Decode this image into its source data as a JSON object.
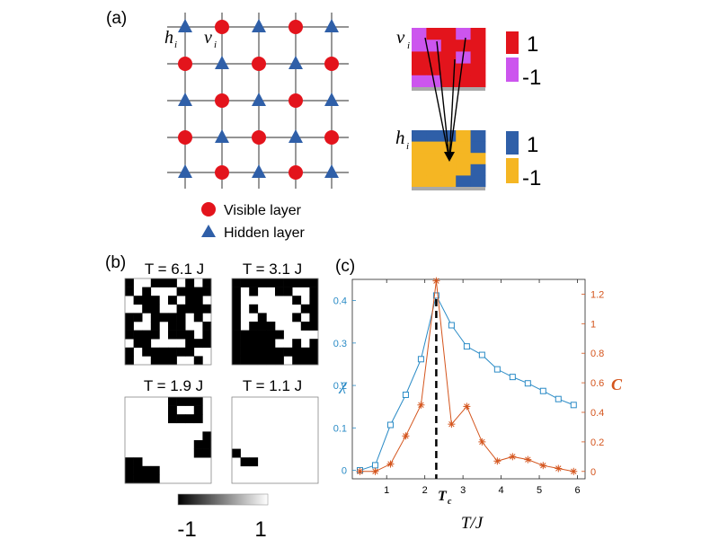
{
  "panel_a": {
    "label": "(a)",
    "hidden_label": {
      "base": "h",
      "sub": "i"
    },
    "visible_label": {
      "base": "v",
      "sub": "i"
    },
    "visible_colorbar": {
      "top": "1",
      "bottom": "-1",
      "colors": [
        "#e3141c",
        "#cc55ee"
      ]
    },
    "hidden_colorbar": {
      "top": "1",
      "bottom": "-1",
      "colors": [
        "#2f5fa8",
        "#f5b623"
      ]
    },
    "legend": [
      {
        "text": "Visible layer",
        "marker": "circle",
        "color": "#e3141c"
      },
      {
        "text": "Hidden layer",
        "marker": "triangle",
        "color": "#2f5fa8"
      }
    ],
    "visible_grid": [
      [
        -1,
        1,
        1,
        -1,
        1
      ],
      [
        -1,
        -1,
        1,
        1,
        1
      ],
      [
        1,
        1,
        1,
        -1,
        1
      ],
      [
        1,
        1,
        1,
        1,
        1
      ],
      [
        -1,
        -1,
        1,
        1,
        1
      ]
    ],
    "hidden_grid": [
      [
        1,
        1,
        1,
        -1,
        1
      ],
      [
        -1,
        -1,
        -1,
        -1,
        1
      ],
      [
        -1,
        -1,
        -1,
        -1,
        -1
      ],
      [
        -1,
        -1,
        -1,
        -1,
        1
      ],
      [
        -1,
        -1,
        -1,
        1,
        1
      ]
    ]
  },
  "panel_b": {
    "label": "(b)",
    "titles": [
      "T = 6.1 J",
      "T = 3.1 J",
      "T = 1.9 J",
      "T = 1.1 J"
    ],
    "colorbar": {
      "min": "-1",
      "max": "1"
    },
    "configs": [
      [
        [
          1,
          0,
          0,
          1,
          1,
          1,
          0,
          1,
          0,
          1
        ],
        [
          1,
          0,
          1,
          0,
          0,
          0,
          1,
          1,
          1,
          1
        ],
        [
          0,
          1,
          1,
          1,
          0,
          1,
          0,
          1,
          1,
          0
        ],
        [
          0,
          0,
          1,
          1,
          0,
          0,
          1,
          1,
          1,
          1
        ],
        [
          1,
          1,
          0,
          1,
          1,
          1,
          1,
          0,
          1,
          0
        ],
        [
          1,
          0,
          0,
          1,
          0,
          1,
          1,
          0,
          0,
          1
        ],
        [
          1,
          1,
          1,
          1,
          0,
          1,
          1,
          1,
          0,
          1
        ],
        [
          0,
          1,
          1,
          0,
          0,
          0,
          0,
          1,
          1,
          1
        ],
        [
          1,
          0,
          1,
          1,
          1,
          1,
          1,
          1,
          0,
          0
        ],
        [
          1,
          0,
          0,
          1,
          1,
          1,
          0,
          0,
          1,
          0
        ]
      ],
      [
        [
          1,
          1,
          1,
          1,
          1,
          1,
          1,
          1,
          1,
          1
        ],
        [
          1,
          0,
          1,
          0,
          0,
          1,
          1,
          0,
          0,
          1
        ],
        [
          1,
          0,
          0,
          0,
          0,
          0,
          0,
          1,
          0,
          1
        ],
        [
          1,
          0,
          1,
          0,
          0,
          0,
          0,
          0,
          1,
          1
        ],
        [
          1,
          0,
          0,
          1,
          0,
          0,
          0,
          1,
          0,
          1
        ],
        [
          1,
          0,
          1,
          1,
          1,
          0,
          0,
          0,
          1,
          1
        ],
        [
          1,
          1,
          1,
          1,
          1,
          1,
          0,
          0,
          0,
          0
        ],
        [
          1,
          1,
          1,
          1,
          1,
          0,
          0,
          1,
          0,
          1
        ],
        [
          1,
          1,
          1,
          1,
          1,
          1,
          1,
          1,
          1,
          1
        ],
        [
          1,
          1,
          1,
          1,
          1,
          1,
          0,
          1,
          1,
          1
        ]
      ],
      [
        [
          0,
          0,
          0,
          0,
          0,
          1,
          1,
          1,
          1,
          0
        ],
        [
          0,
          0,
          0,
          0,
          0,
          1,
          0,
          0,
          1,
          0
        ],
        [
          0,
          0,
          0,
          0,
          0,
          1,
          1,
          1,
          1,
          0
        ],
        [
          0,
          0,
          0,
          0,
          0,
          0,
          0,
          0,
          0,
          0
        ],
        [
          0,
          0,
          0,
          0,
          0,
          0,
          0,
          0,
          0,
          1
        ],
        [
          0,
          0,
          0,
          0,
          0,
          0,
          0,
          0,
          1,
          1
        ],
        [
          0,
          0,
          0,
          0,
          0,
          0,
          0,
          0,
          1,
          1
        ],
        [
          1,
          1,
          0,
          0,
          0,
          0,
          0,
          0,
          0,
          0
        ],
        [
          1,
          1,
          1,
          1,
          0,
          0,
          0,
          0,
          0,
          0
        ],
        [
          1,
          1,
          1,
          1,
          0,
          0,
          0,
          0,
          0,
          0
        ]
      ],
      [
        [
          0,
          0,
          0,
          0,
          0,
          0,
          0,
          0,
          0,
          0
        ],
        [
          0,
          0,
          0,
          0,
          0,
          0,
          0,
          0,
          0,
          0
        ],
        [
          0,
          0,
          0,
          0,
          0,
          0,
          0,
          0,
          0,
          0
        ],
        [
          0,
          0,
          0,
          0,
          0,
          0,
          0,
          0,
          0,
          0
        ],
        [
          0,
          0,
          0,
          0,
          0,
          0,
          0,
          0,
          0,
          0
        ],
        [
          0,
          0,
          0,
          0,
          0,
          0,
          0,
          0,
          0,
          0
        ],
        [
          1,
          0,
          0,
          0,
          0,
          0,
          0,
          0,
          0,
          0
        ],
        [
          0,
          1,
          1,
          0,
          0,
          0,
          0,
          0,
          0,
          0
        ],
        [
          0,
          0,
          0,
          0,
          0,
          0,
          0,
          0,
          0,
          0
        ],
        [
          0,
          0,
          0,
          0,
          0,
          0,
          0,
          0,
          0,
          0
        ]
      ]
    ]
  },
  "chart_data": {
    "type": "line",
    "label": "(c)",
    "xlabel": "T/J",
    "x_ticks": [
      1,
      2,
      3,
      4,
      5,
      6
    ],
    "xlim": [
      0.1,
      6.2
    ],
    "critical": {
      "label": "T",
      "sub": "c",
      "x": 2.3
    },
    "left_axis": {
      "label": "χ",
      "ylim": [
        -0.02,
        0.45
      ],
      "ticks": [
        0,
        0.1,
        0.2,
        0.3,
        0.4
      ],
      "color": "#2a8bc6"
    },
    "right_axis": {
      "label": "C",
      "ylim": [
        -0.05,
        1.3
      ],
      "ticks": [
        0,
        0.2,
        0.4,
        0.6,
        0.8,
        1,
        1.2
      ],
      "color": "#d4541c"
    },
    "series": [
      {
        "axis": "left",
        "marker": "square",
        "color": "#2a8bc6",
        "x": [
          0.3,
          0.7,
          1.1,
          1.5,
          1.9,
          2.3,
          2.7,
          3.1,
          3.5,
          3.9,
          4.3,
          4.7,
          5.1,
          5.5,
          5.9
        ],
        "y": [
          0.0,
          0.012,
          0.107,
          0.178,
          0.262,
          0.412,
          0.342,
          0.292,
          0.272,
          0.238,
          0.22,
          0.205,
          0.187,
          0.168,
          0.154
        ]
      },
      {
        "axis": "right",
        "marker": "asterisk",
        "color": "#d4541c",
        "x": [
          0.3,
          0.7,
          1.1,
          1.5,
          1.9,
          2.3,
          2.7,
          3.1,
          3.5,
          3.9,
          4.3,
          4.7,
          5.1,
          5.5,
          5.9
        ],
        "y": [
          0.0,
          0.0,
          0.05,
          0.24,
          0.45,
          1.29,
          0.32,
          0.44,
          0.2,
          0.07,
          0.1,
          0.08,
          0.04,
          0.02,
          0.0
        ]
      }
    ]
  }
}
